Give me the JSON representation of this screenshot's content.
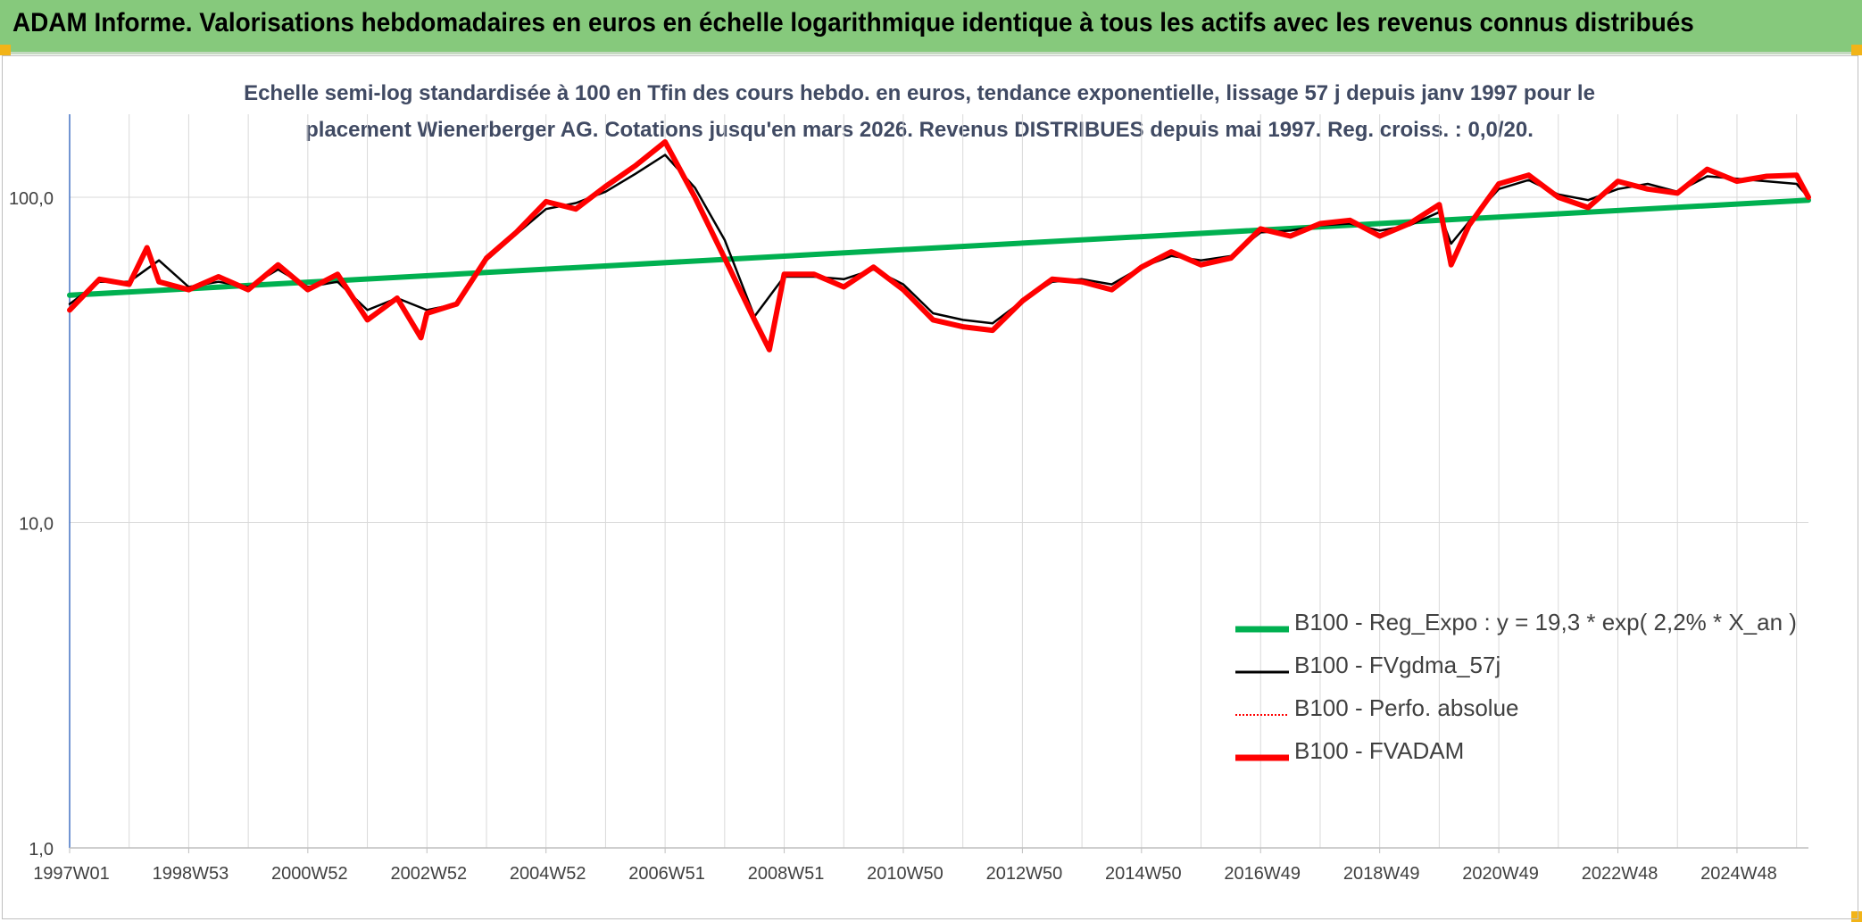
{
  "header": {
    "title": "ADAM Informe. Valorisations hebdomadaires en euros en échelle logarithmique identique à tous les actifs avec les revenus connus distribués"
  },
  "chart_data": {
    "type": "line",
    "subtitle_line1": "Echelle semi-log standardisée à 100 en Tfin des cours hebdo. en euros, tendance exponentielle, lissage 57 j depuis janv 1997 pour le",
    "subtitle_line2": "placement Wienerberger AG. Cotations jusqu'en mars 2026. Revenus DISTRIBUES depuis mai 1997. Reg. croiss. : 0,0/20.",
    "y_scale": "log",
    "ylim": [
      1,
      180
    ],
    "xlim": [
      1997.0,
      2026.2
    ],
    "grid": true,
    "legend_position": "bottom-right",
    "y_ticks": [
      {
        "value": 1,
        "label": "1,0"
      },
      {
        "value": 10,
        "label": "10,0"
      },
      {
        "value": 100,
        "label": "100,0"
      }
    ],
    "x_ticks": [
      {
        "value": 1997.0,
        "label": "1997W01"
      },
      {
        "value": 1999.0,
        "label": "1998W53"
      },
      {
        "value": 2001.0,
        "label": "2000W52"
      },
      {
        "value": 2003.0,
        "label": "2002W52"
      },
      {
        "value": 2005.0,
        "label": "2004W52"
      },
      {
        "value": 2007.0,
        "label": "2006W51"
      },
      {
        "value": 2009.0,
        "label": "2008W51"
      },
      {
        "value": 2011.0,
        "label": "2010W50"
      },
      {
        "value": 2013.0,
        "label": "2012W50"
      },
      {
        "value": 2015.0,
        "label": "2014W50"
      },
      {
        "value": 2017.0,
        "label": "2016W49"
      },
      {
        "value": 2019.0,
        "label": "2018W49"
      },
      {
        "value": 2021.0,
        "label": "2020W49"
      },
      {
        "value": 2023.0,
        "label": "2022W48"
      },
      {
        "value": 2025.0,
        "label": "2024W48"
      }
    ],
    "series": [
      {
        "name": "B100 - Reg_Expo : y = 19,3 * exp( 2,2% *  X_an )",
        "color": "#00b050",
        "style": "thick",
        "x": [
          1997.0,
          2026.2
        ],
        "values": [
          50,
          98
        ]
      },
      {
        "name": "B100 - FVgdma_57j",
        "color": "#000000",
        "style": "thin",
        "x": [
          1997.0,
          1997.5,
          1998.0,
          1998.5,
          1999.0,
          1999.5,
          2000.0,
          2000.5,
          2001.0,
          2001.5,
          2002.0,
          2002.5,
          2003.0,
          2003.5,
          2004.0,
          2004.5,
          2005.0,
          2005.5,
          2006.0,
          2006.5,
          2007.0,
          2007.5,
          2008.0,
          2008.5,
          2009.0,
          2009.5,
          2010.0,
          2010.5,
          2011.0,
          2011.5,
          2012.0,
          2012.5,
          2013.0,
          2013.5,
          2014.0,
          2014.5,
          2015.0,
          2015.5,
          2016.0,
          2016.5,
          2017.0,
          2017.5,
          2018.0,
          2018.5,
          2019.0,
          2019.5,
          2020.0,
          2020.2,
          2020.5,
          2021.0,
          2021.5,
          2022.0,
          2022.5,
          2023.0,
          2023.5,
          2024.0,
          2024.5,
          2025.0,
          2025.5,
          2026.0,
          2026.2
        ],
        "values": [
          47,
          55,
          55,
          64,
          53,
          55,
          53,
          60,
          53,
          55,
          45,
          49,
          45,
          47,
          64,
          77,
          92,
          96,
          104,
          118,
          135,
          107,
          74,
          43,
          57,
          57,
          56,
          60,
          54,
          44,
          42,
          41,
          48,
          55,
          56,
          54,
          61,
          66,
          64,
          66,
          78,
          79,
          82,
          83,
          79,
          82,
          90,
          72,
          84,
          106,
          113,
          102,
          98,
          106,
          110,
          104,
          116,
          114,
          112,
          110,
          100
        ]
      },
      {
        "name": "B100 - Perfo. absolue",
        "color": "#ff0000",
        "style": "dotted",
        "x": [
          1997.0,
          1997.5,
          1998.0,
          1998.3,
          1998.5,
          1999.0,
          1999.5,
          2000.0,
          2000.5,
          2001.0,
          2001.5,
          2002.0,
          2002.5,
          2002.9,
          2003.0,
          2003.5,
          2004.0,
          2004.5,
          2005.0,
          2005.5,
          2006.0,
          2006.5,
          2007.0,
          2007.5,
          2008.0,
          2008.5,
          2008.75,
          2009.0,
          2009.5,
          2010.0,
          2010.5,
          2011.0,
          2011.5,
          2012.0,
          2012.5,
          2013.0,
          2013.5,
          2014.0,
          2014.5,
          2015.0,
          2015.5,
          2016.0,
          2016.5,
          2017.0,
          2017.5,
          2018.0,
          2018.5,
          2019.0,
          2019.5,
          2020.0,
          2020.2,
          2020.5,
          2021.0,
          2021.5,
          2022.0,
          2022.5,
          2023.0,
          2023.5,
          2024.0,
          2024.5,
          2025.0,
          2025.5,
          2026.0,
          2026.2
        ],
        "values": [
          45,
          56,
          54,
          70,
          55,
          52,
          57,
          52,
          62,
          52,
          58,
          42,
          49,
          37,
          44,
          47,
          65,
          78,
          97,
          92,
          108,
          125,
          148,
          100,
          65,
          42,
          34,
          58,
          58,
          53,
          61,
          52,
          42,
          40,
          39,
          48,
          56,
          55,
          52,
          61,
          68,
          62,
          65,
          80,
          76,
          83,
          85,
          76,
          83,
          95,
          62,
          82,
          110,
          117,
          100,
          93,
          112,
          106,
          103,
          122,
          112,
          116,
          117,
          100
        ]
      },
      {
        "name": "B100 - FVADAM",
        "color": "#ff0000",
        "style": "thick",
        "x": [
          1997.0,
          1997.5,
          1998.0,
          1998.3,
          1998.5,
          1999.0,
          1999.5,
          2000.0,
          2000.5,
          2001.0,
          2001.5,
          2002.0,
          2002.5,
          2002.9,
          2003.0,
          2003.5,
          2004.0,
          2004.5,
          2005.0,
          2005.5,
          2006.0,
          2006.5,
          2007.0,
          2007.5,
          2008.0,
          2008.5,
          2008.75,
          2009.0,
          2009.5,
          2010.0,
          2010.5,
          2011.0,
          2011.5,
          2012.0,
          2012.5,
          2013.0,
          2013.5,
          2014.0,
          2014.5,
          2015.0,
          2015.5,
          2016.0,
          2016.5,
          2017.0,
          2017.5,
          2018.0,
          2018.5,
          2019.0,
          2019.5,
          2020.0,
          2020.2,
          2020.5,
          2021.0,
          2021.5,
          2022.0,
          2022.5,
          2023.0,
          2023.5,
          2024.0,
          2024.5,
          2025.0,
          2025.5,
          2026.0,
          2026.2
        ],
        "values": [
          45,
          56,
          54,
          70,
          55,
          52,
          57,
          52,
          62,
          52,
          58,
          42,
          49,
          37,
          44,
          47,
          65,
          78,
          97,
          92,
          108,
          125,
          148,
          100,
          65,
          42,
          34,
          58,
          58,
          53,
          61,
          52,
          42,
          40,
          39,
          48,
          56,
          55,
          52,
          61,
          68,
          62,
          65,
          80,
          76,
          83,
          85,
          76,
          83,
          95,
          62,
          82,
          110,
          117,
          100,
          93,
          112,
          106,
          103,
          122,
          112,
          116,
          117,
          100
        ]
      }
    ]
  }
}
